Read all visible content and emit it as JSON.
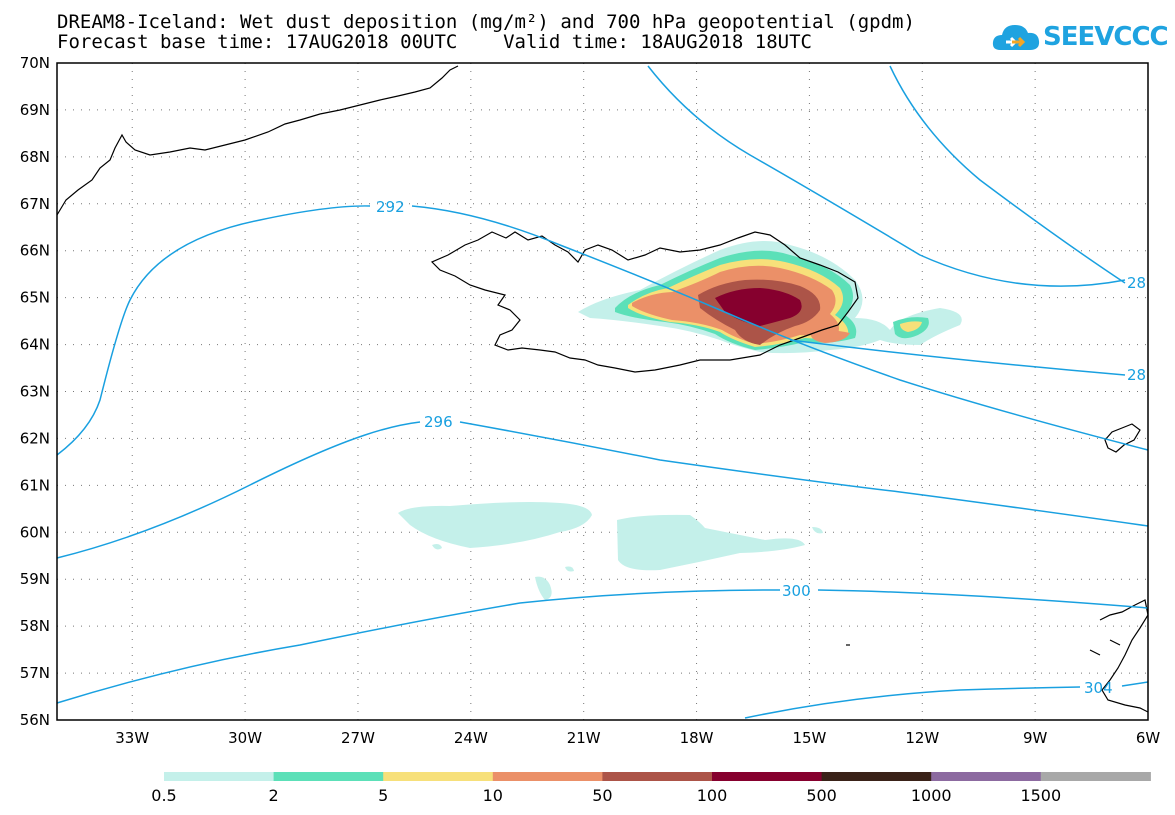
{
  "title": {
    "line1": "DREAM8-Iceland: Wet dust deposition (mg/m²) and 700 hPa geopotential (gpdm)",
    "line2": "Forecast base time: 17AUG2018 00UTC    Valid time: 18AUG2018 18UTC"
  },
  "logo": {
    "text": "SEEVCCC",
    "icon": "cloud-icon"
  },
  "map": {
    "lat_range": [
      56,
      70
    ],
    "lon_range": [
      -35,
      -6
    ],
    "lat_labels": [
      "70N",
      "69N",
      "68N",
      "67N",
      "66N",
      "65N",
      "64N",
      "63N",
      "62N",
      "61N",
      "60N",
      "59N",
      "58N",
      "57N",
      "56N"
    ],
    "lon_labels": [
      "33W",
      "30W",
      "27W",
      "24W",
      "21W",
      "18W",
      "15W",
      "12W",
      "9W",
      "6W"
    ],
    "contour_labels": [
      "292",
      "296",
      "300",
      "304",
      "28",
      "28"
    ],
    "contour_color": "#19a0e0"
  },
  "legend": {
    "colors": [
      "#c4f0ea",
      "#5ce0b8",
      "#f7e07a",
      "#eb9068",
      "#ac5448",
      "#86002e",
      "#3a2218",
      "#8c6aa0",
      "#a8a8a8"
    ],
    "labels": [
      "0.5",
      "2",
      "5",
      "10",
      "50",
      "100",
      "500",
      "1000",
      "1500"
    ]
  }
}
